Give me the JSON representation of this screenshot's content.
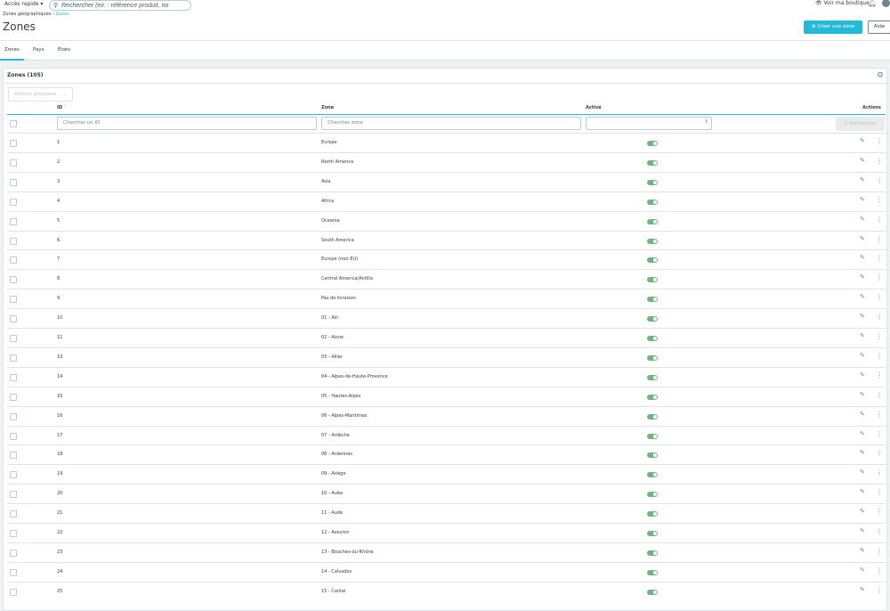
{
  "topbar": {
    "quick_access": "Accès rapide ▾",
    "search_placeholder": "Rechercher (ex. : référence produit, no",
    "view_shop": "Voir ma boutique"
  },
  "breadcrumb": {
    "parent": "Zones géographiques",
    "current": "Zones"
  },
  "page_title": "Zones",
  "toolbar": {
    "create": "Créer une zone",
    "help": "Aide"
  },
  "tabs": [
    {
      "label": "Zones",
      "active": true
    },
    {
      "label": "Pays"
    },
    {
      "label": "États"
    }
  ],
  "card": {
    "title": "Zones (105)",
    "bulk_actions": "Actions groupées"
  },
  "columns": {
    "id": "ID",
    "zone": "Zone",
    "active": "Activé",
    "actions": "Actions"
  },
  "filters": {
    "id_placeholder": "Chercher un ID",
    "zone_placeholder": "Chercher zone",
    "search_button": "Rechercher"
  },
  "colors": {
    "accent": "#25b9d7",
    "toggle_on": "#70b580"
  },
  "rows": [
    {
      "id": "1",
      "zone": "Europe",
      "active": true
    },
    {
      "id": "2",
      "zone": "North America",
      "active": true
    },
    {
      "id": "3",
      "zone": "Asia",
      "active": true
    },
    {
      "id": "4",
      "zone": "Africa",
      "active": true
    },
    {
      "id": "5",
      "zone": "Oceania",
      "active": true
    },
    {
      "id": "6",
      "zone": "South America",
      "active": true
    },
    {
      "id": "7",
      "zone": "Europe (non-EU)",
      "active": true
    },
    {
      "id": "8",
      "zone": "Central America/Antilla",
      "active": true
    },
    {
      "id": "9",
      "zone": "Pas de livraison",
      "active": true
    },
    {
      "id": "10",
      "zone": "01 - Ain",
      "active": true
    },
    {
      "id": "11",
      "zone": "02 - Aisne",
      "active": true
    },
    {
      "id": "13",
      "zone": "03 - Allier",
      "active": true
    },
    {
      "id": "14",
      "zone": "04 - Alpes-de-Haute-Provence",
      "active": true
    },
    {
      "id": "15",
      "zone": "05 - Hautes-Alpes",
      "active": true
    },
    {
      "id": "16",
      "zone": "06 - Alpes-Maritimes",
      "active": true
    },
    {
      "id": "17",
      "zone": "07 - Ardèche",
      "active": true
    },
    {
      "id": "18",
      "zone": "08 - Ardennes",
      "active": true
    },
    {
      "id": "19",
      "zone": "09 - Ariège",
      "active": true
    },
    {
      "id": "20",
      "zone": "10 - Aube",
      "active": true
    },
    {
      "id": "21",
      "zone": "11 - Aude",
      "active": true
    },
    {
      "id": "22",
      "zone": "12 - Aveyron",
      "active": true
    },
    {
      "id": "23",
      "zone": "13 - Bouches-du-Rhône",
      "active": true
    },
    {
      "id": "24",
      "zone": "14 - Calvados",
      "active": true
    },
    {
      "id": "25",
      "zone": "15 - Cantal",
      "active": true
    }
  ]
}
